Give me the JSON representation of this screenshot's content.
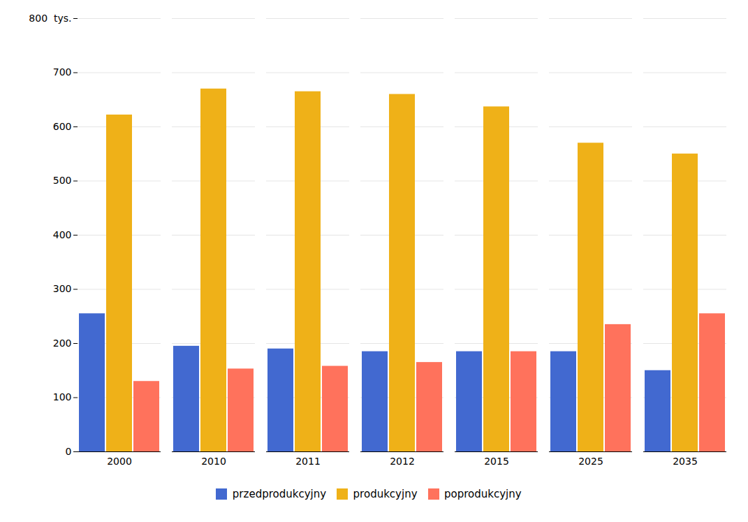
{
  "chart_data": {
    "type": "bar",
    "categories": [
      "2000",
      "2010",
      "2011",
      "2012",
      "2015",
      "2025",
      "2035"
    ],
    "series": [
      {
        "name": "przedprodukcyjny",
        "values": [
          255,
          195,
          190,
          185,
          185,
          185,
          150
        ]
      },
      {
        "name": "produkcyjny",
        "values": [
          622,
          670,
          665,
          660,
          637,
          570,
          550
        ]
      },
      {
        "name": "poprodukcyjny",
        "values": [
          130,
          153,
          158,
          165,
          185,
          235,
          255
        ]
      }
    ],
    "ylim": [
      0,
      800
    ],
    "yticks": [
      0,
      100,
      200,
      300,
      400,
      500,
      600,
      700,
      {
        "value": 800,
        "label": "800  tys."
      }
    ],
    "grid": true,
    "legend": "bottom"
  }
}
